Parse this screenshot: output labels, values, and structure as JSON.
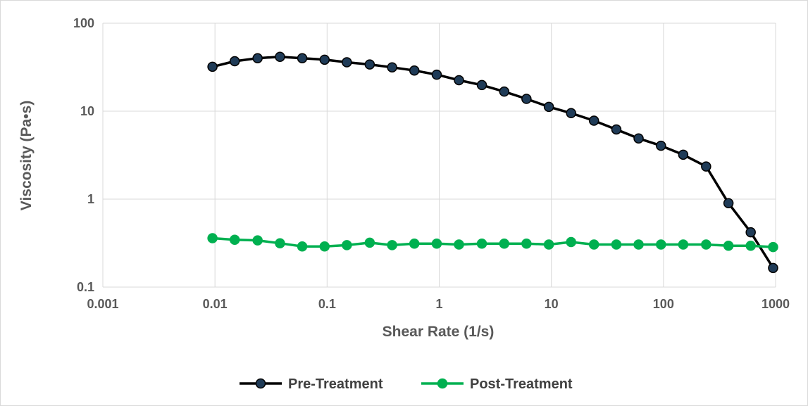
{
  "chart_data": {
    "type": "line",
    "title": "",
    "xlabel": "Shear Rate (1/s)",
    "ylabel": "Viscosity (Pa•s)",
    "xscale": "log",
    "yscale": "log",
    "xlim": [
      0.001,
      1000
    ],
    "ylim": [
      0.1,
      100
    ],
    "x_ticks": [
      "0.001",
      "0.01",
      "0.1",
      "1",
      "10",
      "100",
      "1000"
    ],
    "y_ticks": [
      "0.1",
      "1",
      "10",
      "100"
    ],
    "grid": true,
    "legend_position": "bottom",
    "series": [
      {
        "name": "Pre-Treatment",
        "line_color": "#000000",
        "marker_color": "#1f3b57",
        "x": [
          0.0095,
          0.015,
          0.024,
          0.038,
          0.06,
          0.095,
          0.15,
          0.24,
          0.38,
          0.6,
          0.95,
          1.5,
          2.4,
          3.8,
          6.0,
          9.5,
          15,
          24,
          38,
          60,
          95,
          150,
          240,
          380,
          600,
          950
        ],
        "y": [
          32,
          37,
          40,
          41.5,
          40,
          38.5,
          36,
          34,
          31.5,
          29,
          26,
          22.5,
          19.8,
          16.7,
          13.8,
          11.2,
          9.5,
          7.8,
          6.2,
          4.9,
          4.05,
          3.2,
          2.35,
          0.9,
          0.42,
          0.165
        ]
      },
      {
        "name": "Post-Treatment",
        "line_color": "#00b050",
        "marker_color": "#00b050",
        "x": [
          0.0095,
          0.015,
          0.024,
          0.038,
          0.06,
          0.095,
          0.15,
          0.24,
          0.38,
          0.6,
          0.95,
          1.5,
          2.4,
          3.8,
          6.0,
          9.5,
          15,
          24,
          38,
          60,
          95,
          150,
          240,
          380,
          600,
          950
        ],
        "y": [
          0.36,
          0.345,
          0.34,
          0.315,
          0.29,
          0.29,
          0.3,
          0.32,
          0.3,
          0.312,
          0.312,
          0.305,
          0.312,
          0.312,
          0.312,
          0.305,
          0.325,
          0.305,
          0.305,
          0.305,
          0.305,
          0.305,
          0.305,
          0.295,
          0.295,
          0.285
        ]
      }
    ]
  }
}
